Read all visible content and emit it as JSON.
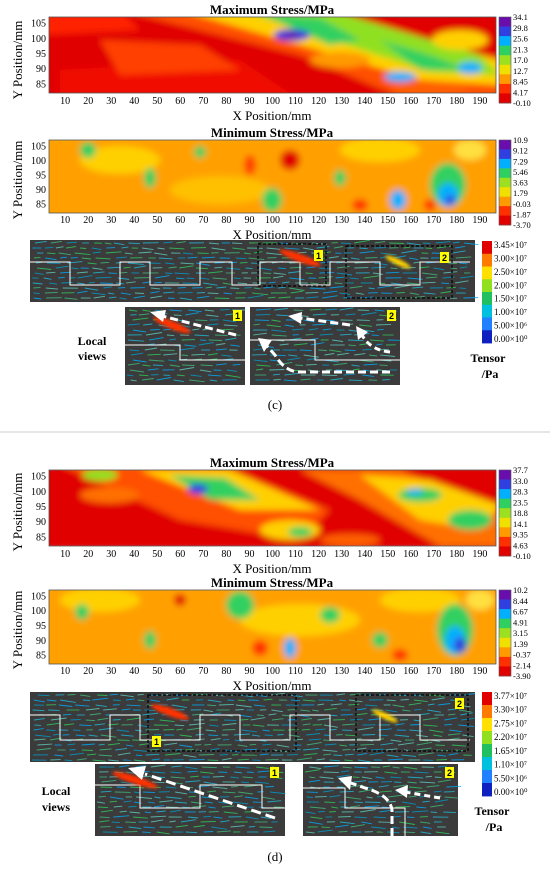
{
  "chart_data": [
    {
      "type": "heatmap",
      "panel": "c",
      "title": "Maximum Stress/MPa",
      "xlabel": "X Position/mm",
      "ylabel": "Y Position/mm",
      "xticks": [
        10,
        20,
        30,
        40,
        50,
        60,
        70,
        80,
        90,
        100,
        110,
        120,
        130,
        140,
        150,
        160,
        170,
        180,
        190
      ],
      "yticks": [
        85,
        90,
        95,
        100,
        105
      ],
      "xlim": [
        3,
        197
      ],
      "ylim": [
        82,
        107
      ],
      "colorbar": [
        "34.1",
        "29.8",
        "25.6",
        "21.3",
        "17.0",
        "12.7",
        "8.45",
        "4.17",
        "-0.10"
      ],
      "crange": [
        -0.1,
        34.1
      ]
    },
    {
      "type": "heatmap",
      "panel": "c",
      "title": "Minimum Stress/MPa",
      "xlabel": "X Position/mm",
      "ylabel": "Y Position/mm",
      "xticks": [
        10,
        20,
        30,
        40,
        50,
        60,
        70,
        80,
        90,
        100,
        110,
        120,
        130,
        140,
        150,
        160,
        170,
        180,
        190
      ],
      "yticks": [
        85,
        90,
        95,
        100,
        105
      ],
      "xlim": [
        3,
        197
      ],
      "ylim": [
        82,
        107
      ],
      "colorbar": [
        "10.9",
        "9.12",
        "7.29",
        "5.46",
        "3.63",
        "1.79",
        "-0.03",
        "-1.87",
        "-3.70"
      ],
      "crange": [
        -3.7,
        10.9
      ]
    },
    {
      "type": "heatmap",
      "panel": "d",
      "title": "Maximum Stress/MPa",
      "xlabel": "X Position/mm",
      "ylabel": "Y Position/mm",
      "xticks": [
        10,
        20,
        30,
        40,
        50,
        60,
        70,
        80,
        90,
        100,
        110,
        120,
        130,
        140,
        150,
        160,
        170,
        180,
        190
      ],
      "yticks": [
        85,
        90,
        95,
        100,
        105
      ],
      "xlim": [
        3,
        197
      ],
      "ylim": [
        82,
        107
      ],
      "colorbar": [
        "37.7",
        "33.0",
        "28.3",
        "23.5",
        "18.8",
        "14.1",
        "9.35",
        "4.63",
        "-0.10"
      ],
      "crange": [
        -0.1,
        37.7
      ]
    },
    {
      "type": "heatmap",
      "panel": "d",
      "title": "Minimum Stress/MPa",
      "xlabel": "X Position/mm",
      "ylabel": "Y Position/mm",
      "xticks": [
        10,
        20,
        30,
        40,
        50,
        60,
        70,
        80,
        90,
        100,
        110,
        120,
        130,
        140,
        150,
        160,
        170,
        180,
        190
      ],
      "yticks": [
        85,
        90,
        95,
        100,
        105
      ],
      "xlim": [
        3,
        197
      ],
      "ylim": [
        82,
        107
      ],
      "colorbar": [
        "10.2",
        "8.44",
        "6.67",
        "4.91",
        "3.15",
        "1.39",
        "-0.37",
        "-2.14",
        "-3.90"
      ],
      "crange": [
        -3.9,
        10.2
      ]
    }
  ],
  "tensor_c": {
    "colorbar": [
      "3.45×10⁷",
      "3.00×10⁷",
      "2.50×10⁷",
      "2.00×10⁷",
      "1.50×10⁷",
      "1.00×10⁷",
      "5.00×10⁶",
      "0.00×10⁰"
    ],
    "box_labels": [
      "1",
      "2"
    ]
  },
  "tensor_d": {
    "colorbar": [
      "3.77×10⁷",
      "3.30×10⁷",
      "2.75×10⁷",
      "2.20×10⁷",
      "1.65×10⁷",
      "1.10×10⁷",
      "5.50×10⁶",
      "0.00×10⁰"
    ],
    "box_labels": [
      "1",
      "2"
    ]
  },
  "labels": {
    "local_line1": "Local",
    "local_line2": "views",
    "tensor_line1": "Tensor",
    "tensor_line2": "/Pa",
    "caption_c": "(c)",
    "caption_d": "(d)"
  },
  "colors": {
    "jet": [
      "#6a0dad",
      "#3040e0",
      "#00b0ff",
      "#30d060",
      "#9ce020",
      "#f0e000",
      "#ff9a00",
      "#ff3000",
      "#e00000"
    ],
    "tensor_bg": "#3b3b3b",
    "divider": "#cccccc"
  }
}
